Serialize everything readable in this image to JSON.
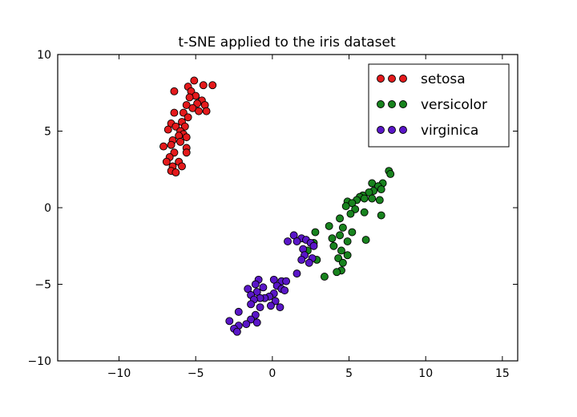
{
  "chart_data": {
    "type": "scatter",
    "title": "t-SNE applied to the iris dataset",
    "xlabel": "",
    "ylabel": "",
    "xlim": [
      -14,
      16
    ],
    "ylim": [
      -10,
      10
    ],
    "xticks": [
      -10,
      -5,
      0,
      5,
      10,
      15
    ],
    "yticks": [
      -10,
      -5,
      0,
      5,
      10
    ],
    "xtick_labels": [
      "−10",
      "−5",
      "0",
      "5",
      "10",
      "15"
    ],
    "ytick_labels": [
      "−10",
      "−5",
      "0",
      "5",
      "10"
    ],
    "grid": false,
    "legend": "top-right",
    "series": [
      {
        "name": "setosa",
        "color": "#e41a1c",
        "points": [
          [
            -5.1,
            8.3
          ],
          [
            -4.5,
            8.0
          ],
          [
            -3.9,
            8.0
          ],
          [
            -5.5,
            7.9
          ],
          [
            -5.3,
            7.6
          ],
          [
            -6.4,
            7.6
          ],
          [
            -5.0,
            7.3
          ],
          [
            -5.4,
            7.2
          ],
          [
            -4.6,
            7.0
          ],
          [
            -4.9,
            6.8
          ],
          [
            -5.6,
            6.7
          ],
          [
            -4.4,
            6.7
          ],
          [
            -5.2,
            6.5
          ],
          [
            -4.8,
            6.3
          ],
          [
            -4.3,
            6.3
          ],
          [
            -5.8,
            6.2
          ],
          [
            -6.4,
            6.2
          ],
          [
            -5.5,
            5.9
          ],
          [
            -5.9,
            5.6
          ],
          [
            -6.6,
            5.5
          ],
          [
            -6.3,
            5.3
          ],
          [
            -5.7,
            5.3
          ],
          [
            -6.8,
            5.1
          ],
          [
            -6.0,
            5.0
          ],
          [
            -5.8,
            4.8
          ],
          [
            -6.1,
            4.7
          ],
          [
            -5.6,
            4.6
          ],
          [
            -6.5,
            4.4
          ],
          [
            -6.0,
            4.3
          ],
          [
            -6.6,
            4.1
          ],
          [
            -7.1,
            4.0
          ],
          [
            -5.6,
            3.9
          ],
          [
            -6.4,
            3.6
          ],
          [
            -6.7,
            3.3
          ],
          [
            -5.6,
            3.6
          ],
          [
            -6.9,
            3.0
          ],
          [
            -6.1,
            3.0
          ],
          [
            -6.5,
            2.7
          ],
          [
            -5.9,
            2.7
          ],
          [
            -6.6,
            2.4
          ],
          [
            -6.3,
            2.3
          ]
        ]
      },
      {
        "name": "versicolor",
        "color": "#18831e",
        "points": [
          [
            7.6,
            2.4
          ],
          [
            7.7,
            2.2
          ],
          [
            6.5,
            1.6
          ],
          [
            7.2,
            1.6
          ],
          [
            6.9,
            1.4
          ],
          [
            7.1,
            1.2
          ],
          [
            6.6,
            1.1
          ],
          [
            6.3,
            1.0
          ],
          [
            5.9,
            0.8
          ],
          [
            5.7,
            0.7
          ],
          [
            6.0,
            0.6
          ],
          [
            6.5,
            0.6
          ],
          [
            7.0,
            0.5
          ],
          [
            5.5,
            0.5
          ],
          [
            4.9,
            0.4
          ],
          [
            5.2,
            0.3
          ],
          [
            4.8,
            0.1
          ],
          [
            5.4,
            -0.1
          ],
          [
            6.0,
            -0.3
          ],
          [
            7.1,
            -0.5
          ],
          [
            5.1,
            -0.4
          ],
          [
            4.4,
            -0.7
          ],
          [
            3.7,
            -1.2
          ],
          [
            4.6,
            -1.3
          ],
          [
            5.2,
            -1.6
          ],
          [
            2.8,
            -1.6
          ],
          [
            4.4,
            -1.8
          ],
          [
            3.9,
            -2.0
          ],
          [
            6.1,
            -2.1
          ],
          [
            2.7,
            -2.3
          ],
          [
            4.9,
            -2.2
          ],
          [
            4.0,
            -2.5
          ],
          [
            2.3,
            -2.8
          ],
          [
            4.5,
            -2.8
          ],
          [
            4.9,
            -3.1
          ],
          [
            4.3,
            -3.3
          ],
          [
            2.9,
            -3.4
          ],
          [
            4.6,
            -3.6
          ],
          [
            4.5,
            -4.1
          ],
          [
            4.2,
            -4.2
          ],
          [
            3.4,
            -4.5
          ]
        ]
      },
      {
        "name": "virginica",
        "color": "#5a16c8",
        "points": [
          [
            1.4,
            -1.8
          ],
          [
            1.9,
            -2.0
          ],
          [
            1.6,
            -2.2
          ],
          [
            2.2,
            -2.1
          ],
          [
            1.0,
            -2.2
          ],
          [
            2.5,
            -2.3
          ],
          [
            2.0,
            -2.7
          ],
          [
            2.7,
            -2.5
          ],
          [
            2.1,
            -3.1
          ],
          [
            2.6,
            -3.3
          ],
          [
            1.9,
            -3.4
          ],
          [
            2.4,
            -3.6
          ],
          [
            1.6,
            -4.3
          ],
          [
            -0.9,
            -4.7
          ],
          [
            0.1,
            -4.7
          ],
          [
            0.6,
            -4.8
          ],
          [
            0.9,
            -4.8
          ],
          [
            -1.1,
            -5.0
          ],
          [
            0.3,
            -5.1
          ],
          [
            -0.6,
            -5.2
          ],
          [
            -1.6,
            -5.3
          ],
          [
            0.6,
            -5.3
          ],
          [
            -1.0,
            -5.5
          ],
          [
            0.8,
            -5.4
          ],
          [
            0.1,
            -5.6
          ],
          [
            -1.4,
            -5.7
          ],
          [
            -0.2,
            -5.8
          ],
          [
            -0.5,
            -5.9
          ],
          [
            -0.8,
            -5.9
          ],
          [
            -1.2,
            -6.0
          ],
          [
            0.2,
            -6.1
          ],
          [
            -1.4,
            -6.3
          ],
          [
            -0.1,
            -6.4
          ],
          [
            -0.8,
            -6.5
          ],
          [
            0.5,
            -6.5
          ],
          [
            -2.2,
            -6.8
          ],
          [
            -1.1,
            -7.0
          ],
          [
            -1.4,
            -7.3
          ],
          [
            -2.8,
            -7.4
          ],
          [
            -1.0,
            -7.5
          ],
          [
            -1.7,
            -7.6
          ],
          [
            -2.2,
            -7.7
          ],
          [
            -2.5,
            -7.9
          ],
          [
            -2.3,
            -8.1
          ]
        ]
      }
    ]
  }
}
